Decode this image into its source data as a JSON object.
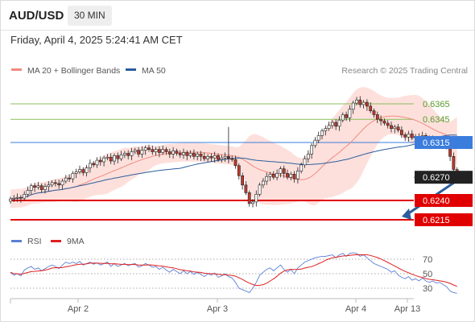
{
  "header": {
    "symbol": "AUD/USD",
    "timeframe": "30 MIN",
    "datetime": "Friday, April 4, 2025 5:24:41 AM CET"
  },
  "legend": {
    "ma20": {
      "label": "MA 20 + Bollinger Bands",
      "color": "#f08a80"
    },
    "ma50": {
      "label": "MA 50",
      "color": "#2c5d9c"
    },
    "copyright": "Research © 2025 Trading Central",
    "rsi": {
      "label": "RSI",
      "color": "#5b7fd6"
    },
    "rsi_ma": {
      "label": "9MA",
      "color": "#e02020"
    }
  },
  "colors": {
    "up_candle": "#ffffff",
    "down_candle": "#c0392b",
    "bollinger_fill": "#fde0dc",
    "resistance": "#8cbd5a",
    "pivot": "#3b7ddd",
    "support": "#e00000",
    "arrow": "#2c5d9c"
  },
  "chart_data": [
    {
      "type": "candlestick",
      "x_ticks": [
        "Apr 2",
        "Apr 3",
        "Apr 4",
        "Apr 13"
      ],
      "y_range": [
        0.6195,
        0.6395
      ],
      "last_price": 0.627,
      "levels": [
        {
          "value": 0.6365,
          "label": "0.6365",
          "kind": "resistance"
        },
        {
          "value": 0.6345,
          "label": "0.6345",
          "kind": "resistance"
        },
        {
          "value": 0.6315,
          "label": "0.6315",
          "kind": "pivot"
        },
        {
          "value": 0.627,
          "label": "0.6270",
          "kind": "last"
        },
        {
          "value": 0.624,
          "label": "0.6240",
          "kind": "support"
        },
        {
          "value": 0.6215,
          "label": "0.6215",
          "kind": "support"
        }
      ],
      "forecast": {
        "from": 0.627,
        "to": 0.6215
      },
      "close": [
        0.6242,
        0.6243,
        0.6244,
        0.6243,
        0.6248,
        0.6253,
        0.6259,
        0.6257,
        0.6259,
        0.6254,
        0.6258,
        0.626,
        0.6263,
        0.6262,
        0.626,
        0.6265,
        0.6269,
        0.6268,
        0.6275,
        0.6277,
        0.628,
        0.6276,
        0.6282,
        0.6288,
        0.6286,
        0.6292,
        0.629,
        0.6295,
        0.6296,
        0.6291,
        0.6298,
        0.6294,
        0.6299,
        0.6301,
        0.6298,
        0.6303,
        0.6305,
        0.63,
        0.6305,
        0.6308,
        0.6306,
        0.6303,
        0.6306,
        0.6302,
        0.6306,
        0.6303,
        0.63,
        0.6304,
        0.6301,
        0.6299,
        0.6302,
        0.6298,
        0.6301,
        0.6297,
        0.63,
        0.6297,
        0.6294,
        0.6297,
        0.6295,
        0.6298,
        0.6293,
        0.6295,
        0.6297,
        0.6294,
        0.6293,
        0.6285,
        0.6272,
        0.626,
        0.625,
        0.6236,
        0.6238,
        0.6248,
        0.626,
        0.6265,
        0.6271,
        0.6274,
        0.627,
        0.6275,
        0.6281,
        0.6275,
        0.627,
        0.6274,
        0.6268,
        0.6278,
        0.6286,
        0.6294,
        0.63,
        0.6311,
        0.6318,
        0.6324,
        0.633,
        0.6333,
        0.6337,
        0.6341,
        0.6336,
        0.6344,
        0.6351,
        0.6347,
        0.6358,
        0.6366,
        0.637,
        0.6364,
        0.6367,
        0.6362,
        0.6356,
        0.6351,
        0.6345,
        0.6343,
        0.634,
        0.6337,
        0.6333,
        0.6335,
        0.6331,
        0.6325,
        0.6322,
        0.6326,
        0.6321,
        0.6323,
        0.632,
        0.6324,
        0.632,
        0.6317,
        0.6319,
        0.6315,
        0.6318,
        0.6316,
        0.6311,
        0.6297,
        0.628,
        0.627
      ]
    },
    {
      "type": "line",
      "name": "RSI",
      "y_ticks": [
        70,
        50,
        30
      ],
      "y_range": [
        15,
        85
      ],
      "values": [
        52,
        48,
        50,
        47,
        55,
        58,
        60,
        56,
        58,
        54,
        57,
        60,
        62,
        60,
        57,
        62,
        66,
        64,
        66,
        64,
        67,
        62,
        64,
        66,
        63,
        65,
        62,
        64,
        66,
        60,
        64,
        60,
        62,
        64,
        61,
        63,
        64,
        59,
        61,
        64,
        62,
        59,
        60,
        56,
        59,
        55,
        52,
        56,
        53,
        50,
        54,
        50,
        53,
        49,
        52,
        49,
        46,
        50,
        48,
        51,
        45,
        47,
        50,
        46,
        44,
        38,
        30,
        28,
        26,
        24,
        30,
        38,
        48,
        52,
        56,
        58,
        54,
        58,
        62,
        56,
        52,
        56,
        50,
        58,
        62,
        66,
        68,
        70,
        72,
        73,
        74,
        74,
        75,
        76,
        72,
        76,
        78,
        74,
        78,
        79,
        78,
        74,
        76,
        72,
        68,
        64,
        62,
        60,
        58,
        56,
        52,
        54,
        48,
        45,
        43,
        46,
        41,
        43,
        40,
        44,
        40,
        38,
        40,
        37,
        38,
        35,
        32,
        26,
        24,
        23
      ]
    }
  ]
}
